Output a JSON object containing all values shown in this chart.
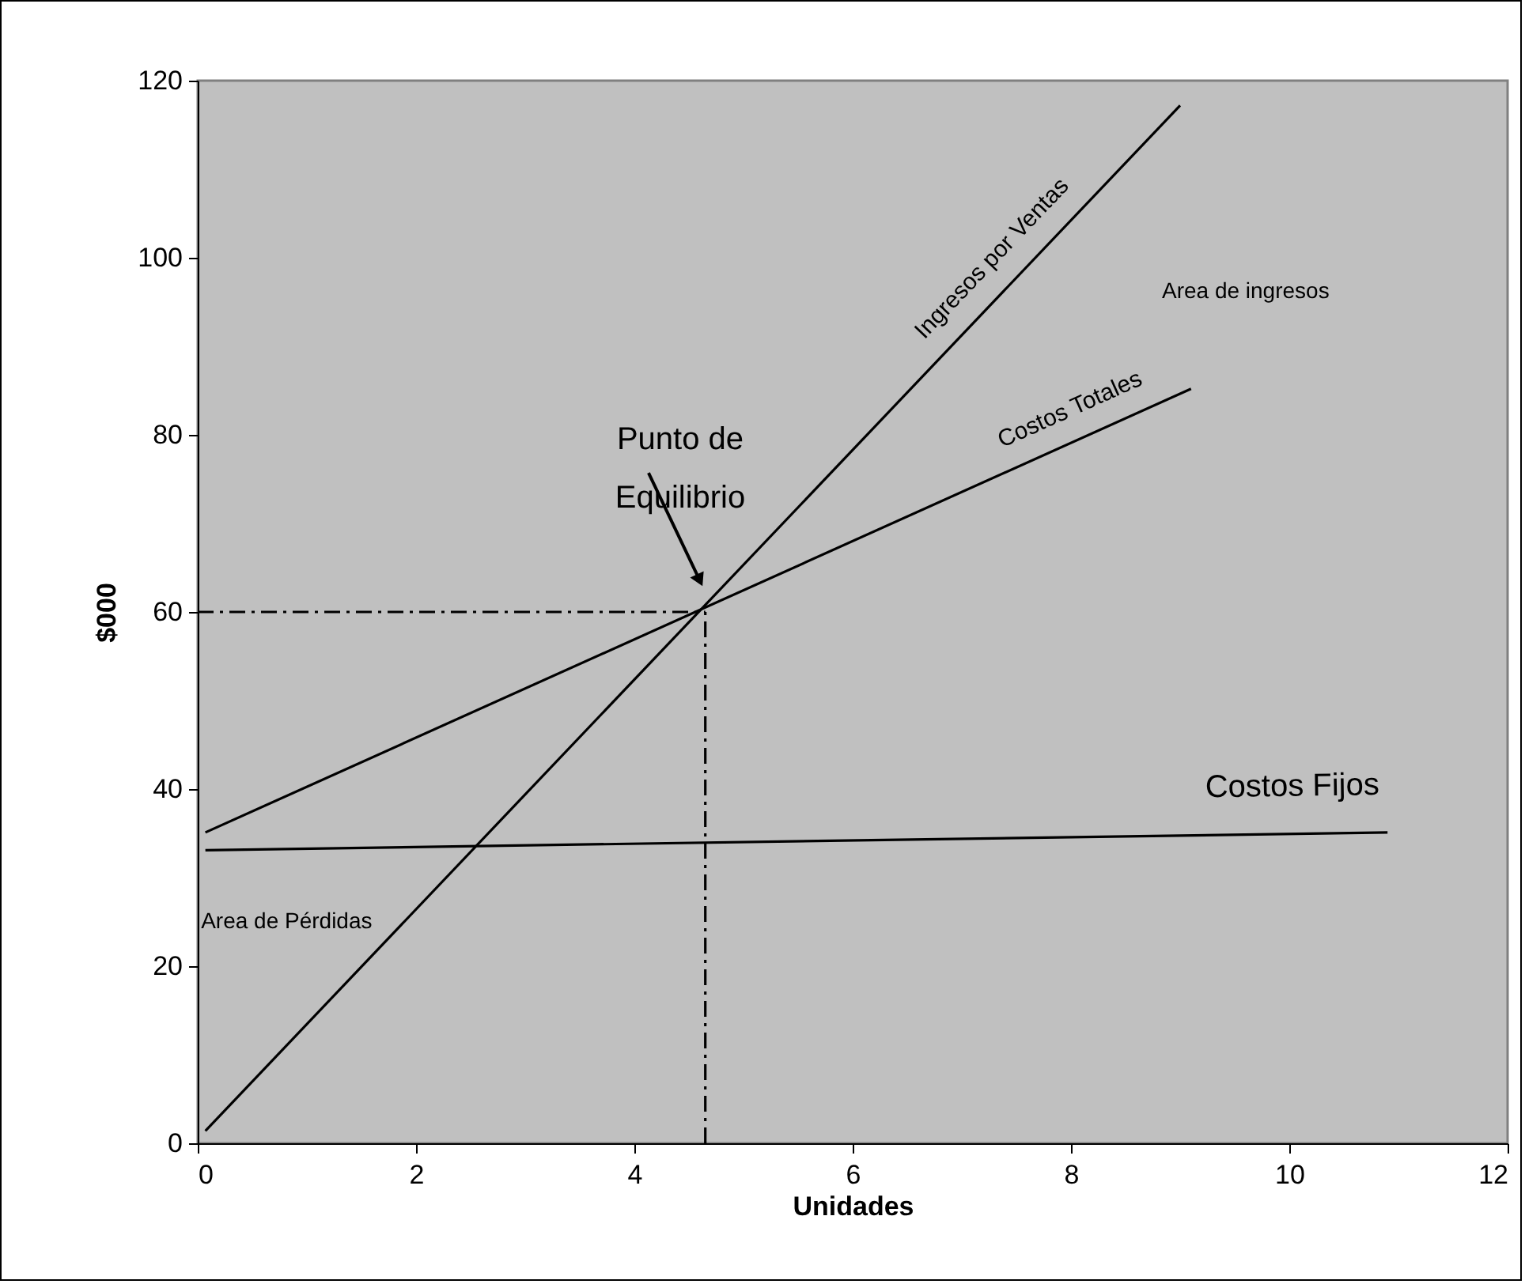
{
  "chart_data": {
    "type": "line",
    "xlabel": "Unidades",
    "ylabel": "$000",
    "xlim": [
      0,
      12
    ],
    "ylim": [
      0,
      120
    ],
    "xticks": [
      0,
      2,
      4,
      6,
      8,
      10,
      12
    ],
    "yticks": [
      0,
      20,
      40,
      60,
      80,
      100,
      120
    ],
    "grid": false,
    "legend": false,
    "marker": "none",
    "series": [
      {
        "name": "Ingresos por Ventas",
        "color": "#000000",
        "x": [
          0.07,
          9.0
        ],
        "values": [
          1.4,
          117.2
        ]
      },
      {
        "name": "Costos Totales",
        "color": "#000000",
        "x": [
          0.07,
          9.1
        ],
        "values": [
          35.1,
          85.2
        ]
      },
      {
        "name": "Costos Fijos",
        "color": "#000000",
        "x": [
          0.07,
          10.9
        ],
        "values": [
          33.1,
          35.1
        ]
      },
      {
        "color": "#000000",
        "line_style": "dashed",
        "x": [
          0,
          4.65
        ],
        "values": [
          60,
          60
        ]
      },
      {
        "color": "#000000",
        "line_style": "dashed",
        "x": [
          4.65,
          4.65
        ],
        "values": [
          0,
          60
        ]
      }
    ],
    "annotations": [
      "Punto de Equilibrio",
      "Area de ingresos",
      "Area de Pérdidas"
    ]
  }
}
